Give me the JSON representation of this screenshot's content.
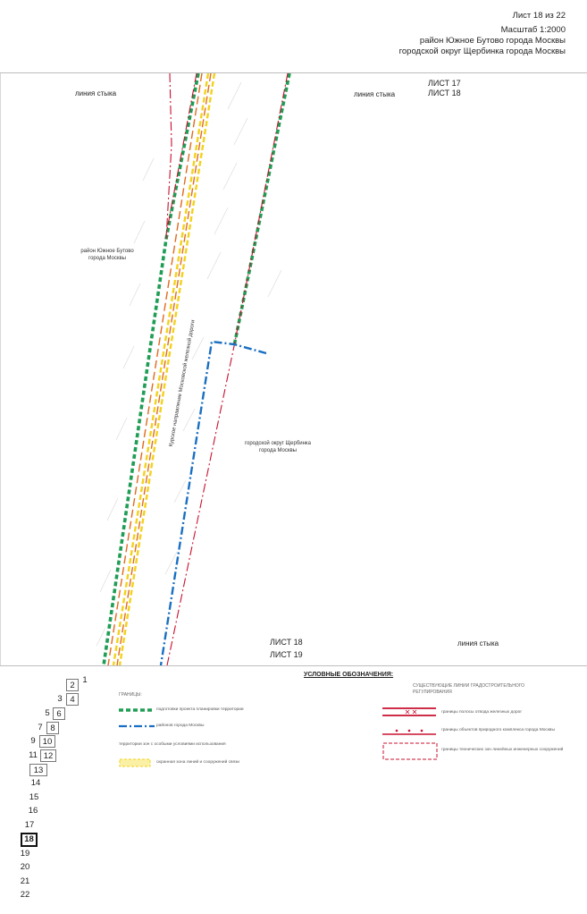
{
  "header": {
    "sheet": "Лист 18 из 22",
    "scale": "Масштаб 1:2000",
    "district": "район Южное Бутово города Москвы",
    "okrug": "городской округ Щербинка города Москвы"
  },
  "map": {
    "junction_line_left": "линия стыка",
    "junction_line_right": "линия стыка",
    "junction_line_bottom": "линия стыка",
    "sheet_top_a": "ЛИСТ 17",
    "sheet_top_b": "ЛИСТ 18",
    "sheet_bottom_a": "ЛИСТ 18",
    "sheet_bottom_b": "ЛИСТ 19",
    "area_left_1": "район Южное Бутово",
    "area_left_2": "города Москвы",
    "area_right_1": "городской округ Щербинка",
    "area_right_2": "города Москвы",
    "railway": "Курское направление Московской железной дороги"
  },
  "legend": {
    "title": "УСЛОВНЫЕ ОБОЗНАЧЕНИЯ:",
    "group_boundaries": "ГРАНИЦЫ:",
    "item_planning": "подготовки проекта планировки территории",
    "item_districts": "районов города Москвы",
    "group_zones": "территории зон с особыми условиями использования",
    "item_protect_zone": "охранная зона линий и сооружений связи",
    "group_existing": "СУЩЕСТВУЮЩИЕ ЛИНИИ ГРАДОСТРОИТЕЛЬНОГО РЕГУЛИРОВАНИЯ",
    "item_railway_strip": "границы полосы отвода железных дорог",
    "item_natural": "границы объектов природного комплекса города Москвы",
    "item_engineering": "границы технических зон линейных инженерных сооружений"
  },
  "sheet_index": {
    "current": "18",
    "cells": [
      "1",
      "2",
      "3",
      "4",
      "5",
      "6",
      "7",
      "8",
      "9",
      "10",
      "11",
      "12",
      "13",
      "14",
      "15",
      "16",
      "17",
      "18",
      "19",
      "20",
      "21",
      "22"
    ]
  },
  "colors": {
    "planning_boundary": "#1f9d55",
    "district_boundary": "#1a6fc2",
    "railway_strip": "#c8102e",
    "protect_zone": "#f2d21a",
    "railway_axis": "#e06a1f"
  }
}
